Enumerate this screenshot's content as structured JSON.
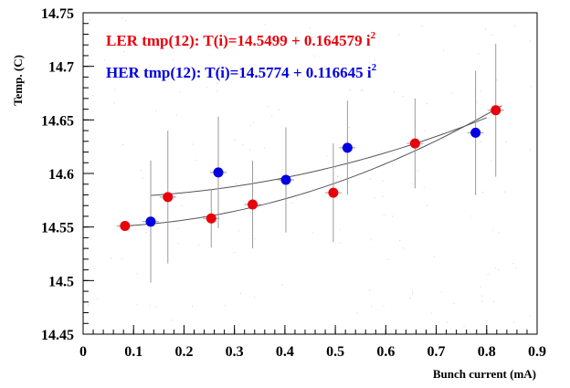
{
  "chart_data": {
    "type": "scatter",
    "xlabel": "Bunch current (mA)",
    "ylabel": "Temp. (C)",
    "xlim": [
      0,
      0.9
    ],
    "ylim": [
      14.45,
      14.75
    ],
    "x_ticks": [
      "0",
      "0.1",
      "0.2",
      "0.3",
      "0.4",
      "0.5",
      "0.6",
      "0.7",
      "0.8",
      "0.9"
    ],
    "y_ticks": [
      "14.45",
      "14.5",
      "14.55",
      "14.6",
      "14.65",
      "14.7",
      "14.75"
    ],
    "grid": false,
    "legend_position": "top-left",
    "series": [
      {
        "name": "LER tmp(12)",
        "color": "#e8000b",
        "fit_label": "LER tmp(12): T(i)=14.5499 + 0.164579 i",
        "fit_exponent": "2",
        "fit": {
          "a": 14.5499,
          "b": 0.164579,
          "x_range": [
            0.08,
            0.83
          ]
        },
        "points": [
          {
            "x": 0.083,
            "y": 14.551,
            "err": 0.0
          },
          {
            "x": 0.168,
            "y": 14.578,
            "err": 0.062
          },
          {
            "x": 0.254,
            "y": 14.558,
            "err": 0.027
          },
          {
            "x": 0.336,
            "y": 14.571,
            "err": 0.041
          },
          {
            "x": 0.496,
            "y": 14.582,
            "err": 0.046
          },
          {
            "x": 0.658,
            "y": 14.628,
            "err": 0.042
          },
          {
            "x": 0.818,
            "y": 14.659,
            "err": 0.062
          }
        ]
      },
      {
        "name": "HER tmp(12)",
        "color": "#0000e0",
        "fit_label": "HER tmp(12): T(i)=14.5774 + 0.116645 i",
        "fit_exponent": "2",
        "fit": {
          "a": 14.5774,
          "b": 0.116645,
          "x_range": [
            0.135,
            0.8
          ]
        },
        "points": [
          {
            "x": 0.134,
            "y": 14.555,
            "err": 0.057
          },
          {
            "x": 0.268,
            "y": 14.601,
            "err": 0.052
          },
          {
            "x": 0.402,
            "y": 14.594,
            "err": 0.049
          },
          {
            "x": 0.524,
            "y": 14.624,
            "err": 0.044
          },
          {
            "x": 0.778,
            "y": 14.638,
            "err": 0.058
          }
        ]
      }
    ]
  }
}
